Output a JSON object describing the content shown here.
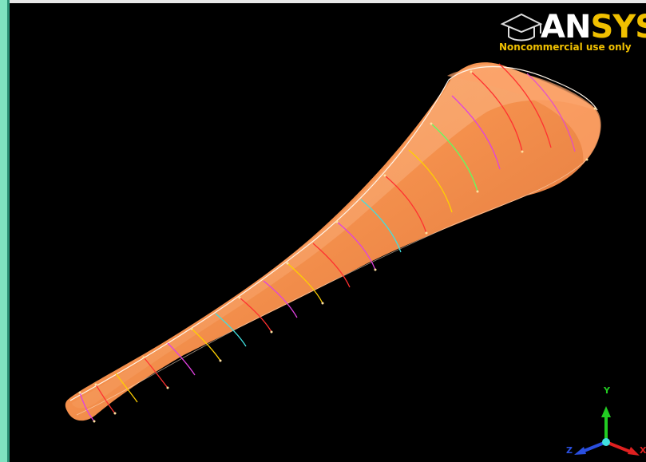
{
  "app": {
    "logo_brand_an": "AN",
    "logo_brand_sys": "SYS",
    "logo_tagline": "Noncommercial use only"
  },
  "triad": {
    "y_label": "Y",
    "z_label": "Z",
    "x_label": "X"
  },
  "colors": {
    "background": "#000000",
    "surface": "#f5914d",
    "logo_yellow": "#f0c000",
    "side_strip": "#7fe3c0",
    "y_axis": "#22cc22",
    "z_axis": "#2a4fe0",
    "x_axis": "#e02020"
  },
  "icons": {
    "logo": "ansys-logo-icon",
    "triad": "coordinate-triad-icon"
  }
}
